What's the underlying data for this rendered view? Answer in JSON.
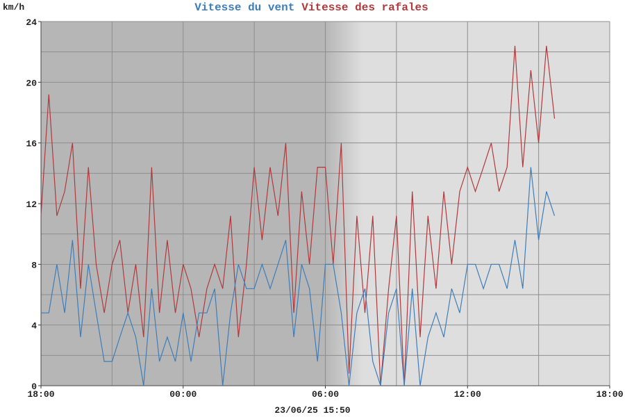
{
  "chart_data": {
    "type": "line",
    "y_label": "km/h",
    "footer": "23/06/25 15:50",
    "x": [
      0,
      0.33,
      0.67,
      1,
      1.33,
      1.67,
      2,
      2.33,
      2.67,
      3,
      3.33,
      3.67,
      4,
      4.33,
      4.67,
      5,
      5.33,
      5.67,
      6,
      6.33,
      6.67,
      7,
      7.33,
      7.67,
      8,
      8.33,
      8.67,
      9,
      9.33,
      9.67,
      10,
      10.33,
      10.67,
      11,
      11.33,
      11.67,
      12,
      12.33,
      12.67,
      13,
      13.33,
      13.67,
      14,
      14.33,
      14.67,
      15,
      15.33,
      15.67,
      16,
      16.33,
      16.67,
      17,
      17.33,
      17.67,
      18,
      18.33,
      18.67,
      19,
      19.33,
      19.67,
      20,
      20.33,
      20.67,
      21,
      21.33,
      21.67
    ],
    "series": [
      {
        "name": "Vitesse du vent",
        "color": "#3d7dba",
        "values": [
          4.8,
          4.8,
          8,
          4.8,
          9.6,
          3.2,
          8,
          4.8,
          1.6,
          1.6,
          3.2,
          4.8,
          3.2,
          0,
          6.4,
          1.6,
          3.2,
          1.6,
          4.8,
          1.6,
          4.8,
          4.8,
          6.4,
          0,
          4.8,
          8,
          6.4,
          6.4,
          8,
          6.4,
          8,
          9.6,
          3.2,
          8,
          6.4,
          1.6,
          8,
          8,
          4.8,
          0,
          4.8,
          6.4,
          1.6,
          0,
          4.8,
          6.4,
          0,
          6.4,
          0,
          3.2,
          4.8,
          3.2,
          6.4,
          4.8,
          8,
          8,
          6.4,
          8,
          8,
          6.4,
          9.6,
          6.4,
          14.4,
          9.6,
          12.8,
          11.2
        ]
      },
      {
        "name": "Vitesse des rafales",
        "color": "#b0393c",
        "values": [
          11.2,
          19.2,
          11.2,
          12.8,
          16,
          6.4,
          14.4,
          8,
          4.8,
          8,
          9.6,
          4.8,
          8,
          3.2,
          14.4,
          4.8,
          9.6,
          4.8,
          8,
          6.4,
          3.2,
          6.4,
          8,
          6.4,
          11.2,
          3.2,
          8,
          14.4,
          9.6,
          14.4,
          11.2,
          16,
          4.8,
          12.8,
          8,
          14.4,
          14.4,
          8,
          16,
          0.8,
          11.2,
          4.8,
          11.2,
          0,
          6.4,
          11.2,
          0,
          12.8,
          3.2,
          11.2,
          6.4,
          12.8,
          8,
          12.8,
          14.4,
          12.8,
          14.4,
          16,
          12.8,
          14.4,
          22.4,
          14.4,
          20.8,
          16,
          22.4,
          17.6
        ]
      }
    ],
    "xlim": [
      0,
      24
    ],
    "xticks": [
      {
        "value": 0,
        "label": "18:00"
      },
      {
        "value": 6,
        "label": "00:00"
      },
      {
        "value": 12,
        "label": "06:00"
      },
      {
        "value": 18,
        "label": "12:00"
      },
      {
        "value": 24,
        "label": "18:00"
      }
    ],
    "minor_xticks": [
      3,
      9,
      15,
      21
    ],
    "ylim": [
      0,
      24
    ],
    "yticks": [
      0,
      4,
      8,
      12,
      16,
      20,
      24
    ],
    "minor_yticks": [
      2,
      6,
      10,
      14,
      18,
      22
    ],
    "grid": true
  }
}
